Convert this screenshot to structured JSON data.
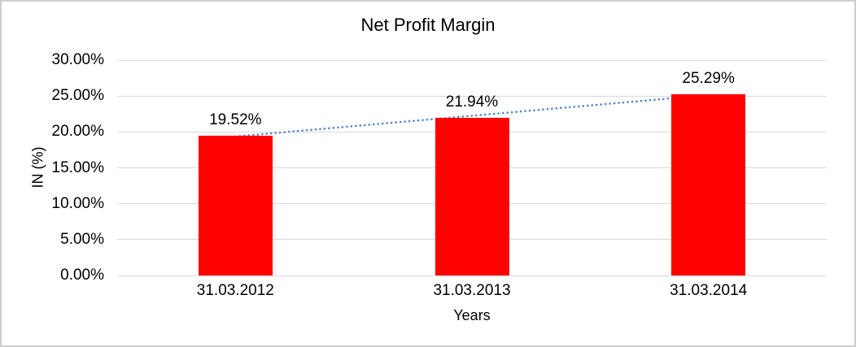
{
  "chart_data": {
    "type": "bar",
    "title": "Net Profit Margin",
    "categories": [
      "31.03.2012",
      "31.03.2013",
      "31.03.2014"
    ],
    "values": [
      19.52,
      21.94,
      25.29
    ],
    "value_labels": [
      "19.52%",
      "21.94%",
      "25.29%"
    ],
    "xlabel": "Years",
    "ylabel": "IN (%)",
    "ylim": [
      0,
      30
    ],
    "ytick_step": 5,
    "ytick_labels": [
      "0.00%",
      "5.00%",
      "10.00%",
      "15.00%",
      "20.00%",
      "25.00%",
      "30.00%"
    ],
    "grid": true,
    "legend": "none",
    "bar_color": "#ff0000",
    "gridline_color": "#d9d9d9",
    "trendline": {
      "type": "linear",
      "style": "dotted",
      "color": "#4a86c8"
    }
  }
}
